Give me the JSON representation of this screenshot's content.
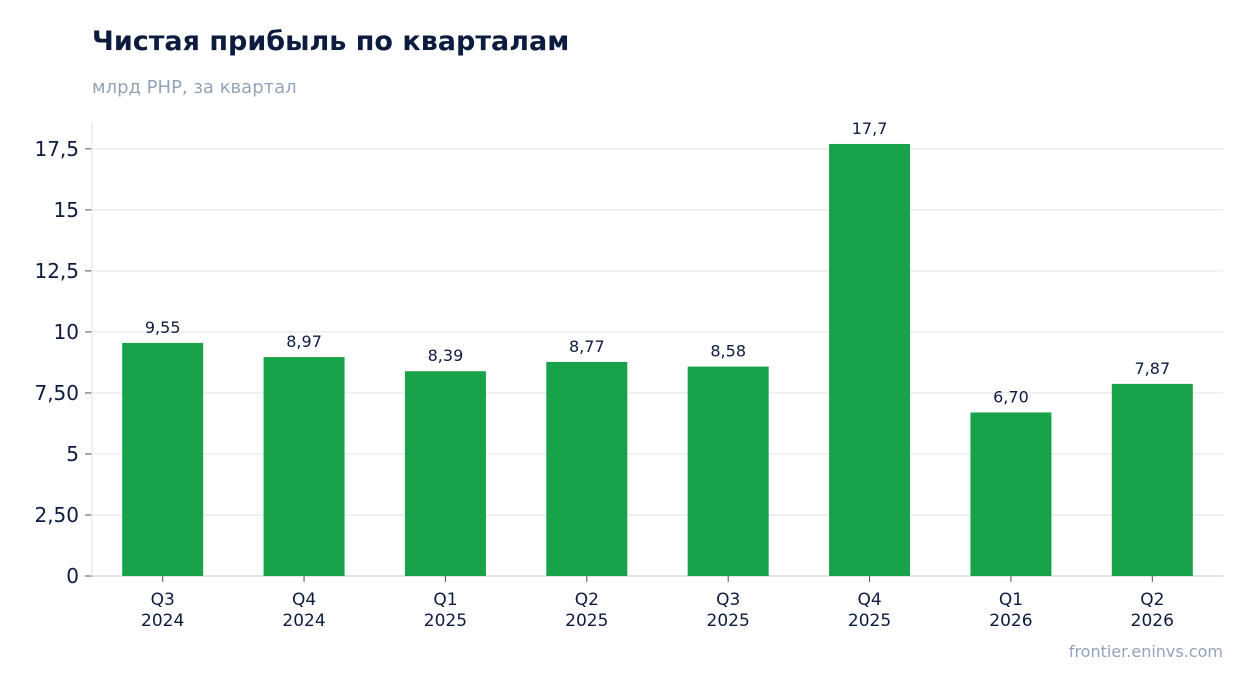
{
  "title": "Чистая прибыль по кварталам",
  "subtitle": "млрд PHP, за квартал",
  "source": "frontier.eninvs.com",
  "colors": {
    "bar": "#18a34a",
    "grid": "#e5e7eb",
    "axis": "#d1d5db",
    "text": "#0d1b3e"
  },
  "chart_data": {
    "type": "bar",
    "categories": [
      [
        "Q3",
        "2024"
      ],
      [
        "Q4",
        "2024"
      ],
      [
        "Q1",
        "2025"
      ],
      [
        "Q2",
        "2025"
      ],
      [
        "Q3",
        "2025"
      ],
      [
        "Q4",
        "2025"
      ],
      [
        "Q1",
        "2026"
      ],
      [
        "Q2",
        "2026"
      ]
    ],
    "values": [
      9.55,
      8.97,
      8.39,
      8.77,
      8.58,
      17.7,
      6.7,
      7.87
    ],
    "value_labels": [
      "9,55",
      "8,97",
      "8,39",
      "8,77",
      "8,58",
      "17,7",
      "6,70",
      "7,87"
    ],
    "yticks": [
      0,
      2.5,
      5,
      7.5,
      10,
      12.5,
      15,
      17.5
    ],
    "ytick_labels": [
      "0",
      "2,50",
      "5",
      "7,50",
      "10",
      "12,5",
      "15",
      "17,5"
    ],
    "ylim": [
      0,
      18.6
    ],
    "grid": true,
    "xlabel": "",
    "ylabel": ""
  }
}
